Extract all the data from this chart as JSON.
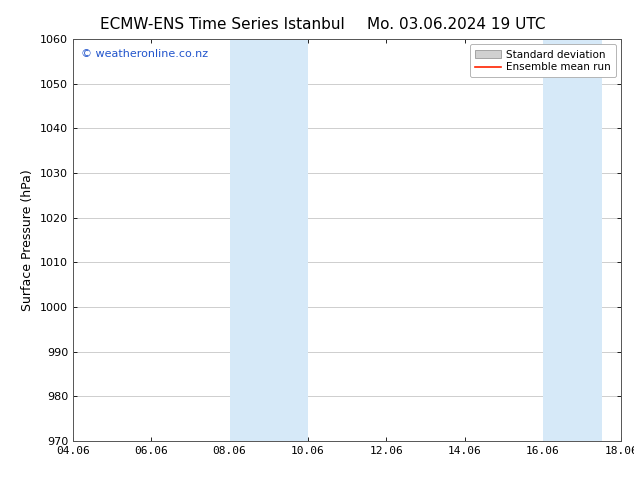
{
  "title_left": "ECMW-ENS Time Series Istanbul",
  "title_right": "Mo. 03.06.2024 19 UTC",
  "ylabel": "Surface Pressure (hPa)",
  "xlabel": "",
  "xlim": [
    4.06,
    18.06
  ],
  "ylim": [
    970,
    1060
  ],
  "yticks": [
    970,
    980,
    990,
    1000,
    1010,
    1020,
    1030,
    1040,
    1050,
    1060
  ],
  "xticks": [
    4.06,
    6.06,
    8.06,
    10.06,
    12.06,
    14.06,
    16.06,
    18.06
  ],
  "xticklabels": [
    "04.06",
    "06.06",
    "08.06",
    "10.06",
    "12.06",
    "14.06",
    "16.06",
    "18.06"
  ],
  "shaded_bands": [
    {
      "x_start": 8.06,
      "x_end": 10.06
    },
    {
      "x_start": 16.06,
      "x_end": 17.56
    }
  ],
  "shade_color": "#d6e9f8",
  "background_color": "#ffffff",
  "grid_color": "#bbbbbb",
  "watermark_text": "© weatheronline.co.nz",
  "watermark_color": "#2255cc",
  "legend_std_dev_color": "#d0d0d0",
  "legend_mean_color": "#ff2200",
  "title_fontsize": 11,
  "ylabel_fontsize": 9,
  "tick_fontsize": 8,
  "watermark_fontsize": 8,
  "legend_fontsize": 7.5
}
